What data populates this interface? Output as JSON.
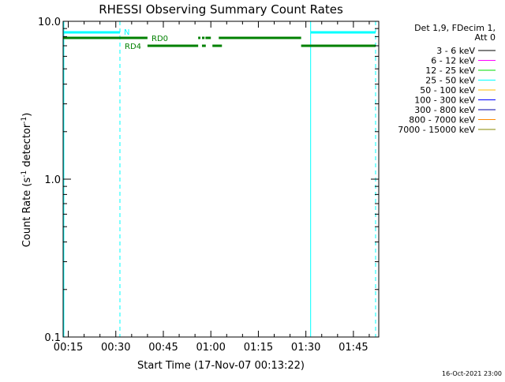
{
  "chart_data": {
    "type": "line",
    "title": "RHESSI Observing Summary Count Rates",
    "xlabel": "Start Time (17-Nov-07 00:13:22)",
    "ylabel_parts": [
      "Count Rate (s",
      "-1",
      " detector",
      "-1",
      ")"
    ],
    "y_scale": "log",
    "ylim": [
      0.1,
      10.0
    ],
    "xlim_minutes": [
      13.37,
      113.0
    ],
    "x_ticks": [
      {
        "label": "00:15",
        "minutes": 15
      },
      {
        "label": "00:30",
        "minutes": 30
      },
      {
        "label": "00:45",
        "minutes": 45
      },
      {
        "label": "01:00",
        "minutes": 60
      },
      {
        "label": "01:15",
        "minutes": 75
      },
      {
        "label": "01:30",
        "minutes": 90
      },
      {
        "label": "01:45",
        "minutes": 105
      }
    ],
    "y_ticks": [
      {
        "label": "10.0",
        "value": 10.0
      },
      {
        "label": "1.0",
        "value": 1.0
      },
      {
        "label": "0.1",
        "value": 0.1
      }
    ],
    "legend": {
      "title_lines": [
        "Det 1,9, FDecim 1,",
        "Att 0"
      ],
      "placement": "right",
      "entries": [
        {
          "label": "3 - 6 keV",
          "color": "#000000"
        },
        {
          "label": "6 - 12 keV",
          "color": "#ff00ff"
        },
        {
          "label": "12 - 25 keV",
          "color": "#00dd00"
        },
        {
          "label": "25 - 50 keV",
          "color": "#00ffff"
        },
        {
          "label": "50 - 100 keV",
          "color": "#ffbb00"
        },
        {
          "label": "100 - 300 keV",
          "color": "#0000ff"
        },
        {
          "label": "300 - 800 keV",
          "color": "#0000aa"
        },
        {
          "label": "800 - 7000 keV",
          "color": "#ff8800"
        },
        {
          "label": "7000 - 15000 keV",
          "color": "#888800"
        }
      ]
    },
    "flags": [
      {
        "name": "N",
        "color": "#00ffff",
        "segments": [
          [
            13.4,
            31.3
          ],
          [
            91.5,
            112.0
          ]
        ]
      },
      {
        "name": "RD0",
        "color": "#008000",
        "segments": [
          [
            13.4,
            40.0
          ],
          [
            56.0,
            56.7
          ],
          [
            57.2,
            58.0
          ],
          [
            58.3,
            60.0
          ],
          [
            62.5,
            88.5
          ]
        ]
      },
      {
        "name": "RD4",
        "color": "#008000",
        "segments": [
          [
            40.0,
            56.0
          ],
          [
            57.2,
            58.4
          ],
          [
            60.5,
            63.5
          ],
          [
            88.5,
            112.0
          ]
        ]
      }
    ],
    "vertical_markers": [
      {
        "minutes": 13.6,
        "style": "solid",
        "color": "#00ffff"
      },
      {
        "minutes": 31.3,
        "style": "dashed",
        "color": "#00ffff"
      },
      {
        "minutes": 91.5,
        "style": "solid",
        "color": "#00ffff"
      },
      {
        "minutes": 112.0,
        "style": "dashed",
        "color": "#00ffff"
      }
    ],
    "grid": false
  },
  "footer": {
    "timestamp": "16-Oct-2021 23:00"
  }
}
